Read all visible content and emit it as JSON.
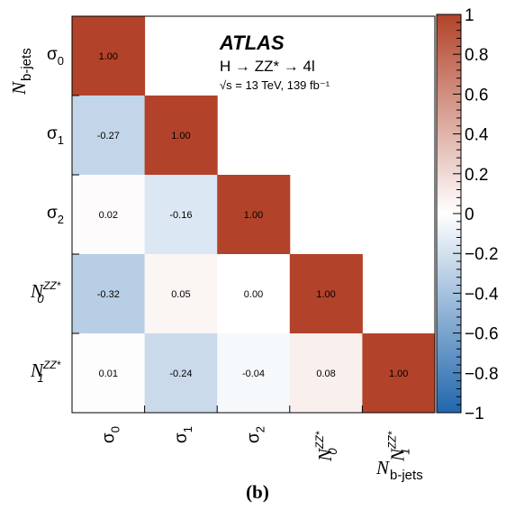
{
  "chart_data": {
    "type": "heatmap",
    "title": "ATLAS",
    "process": "H → ZZ* → 4l",
    "energy_lumi": "√s = 13 TeV, 139 fb⁻¹",
    "row_labels": [
      {
        "main": "σ",
        "sub": "0",
        "sup": ""
      },
      {
        "main": "σ",
        "sub": "1",
        "sup": ""
      },
      {
        "main": "σ",
        "sub": "2",
        "sup": ""
      },
      {
        "main": "N",
        "sub": "0",
        "sup": "ZZ*"
      },
      {
        "main": "N",
        "sub": "1",
        "sup": "ZZ*"
      }
    ],
    "col_labels": [
      {
        "main": "σ",
        "sub": "0",
        "sup": ""
      },
      {
        "main": "σ",
        "sub": "1",
        "sup": ""
      },
      {
        "main": "σ",
        "sub": "2",
        "sup": ""
      },
      {
        "main": "N",
        "sub": "0",
        "sup": "ZZ*"
      },
      {
        "main": "N",
        "sub": "1",
        "sup": "ZZ*"
      }
    ],
    "matrix": [
      [
        1.0,
        null,
        null,
        null,
        null
      ],
      [
        -0.27,
        1.0,
        null,
        null,
        null
      ],
      [
        0.02,
        -0.16,
        1.0,
        null,
        null
      ],
      [
        -0.32,
        0.05,
        0.0,
        1.0,
        null
      ],
      [
        0.01,
        -0.24,
        -0.04,
        0.08,
        1.0
      ]
    ],
    "cell_labels": [
      [
        "1.00"
      ],
      [
        "-0.27",
        "1.00"
      ],
      [
        "0.02",
        "-0.16",
        "1.00"
      ],
      [
        "-0.32",
        "0.05",
        "0.00",
        "1.00"
      ],
      [
        "0.01",
        "-0.24",
        "-0.04",
        "0.08",
        "1.00"
      ]
    ],
    "ylabel": {
      "main": "N",
      "sub": "b-jets"
    },
    "xlabel": {
      "main": "N",
      "sub": "b-jets"
    },
    "zlim": [
      -1,
      1
    ],
    "colorbar_ticks": [
      1,
      0.8,
      0.6,
      0.4,
      0.2,
      0,
      -0.2,
      -0.4,
      -0.6,
      -0.8,
      -1
    ],
    "colorbar_labels": [
      "1",
      "0.8",
      "0.6",
      "0.4",
      "0.2",
      "0",
      "−0.2",
      "−0.4",
      "−0.6",
      "−0.8",
      "−1"
    ],
    "colors": {
      "negative": "#2166ac",
      "zero": "#ffffff",
      "positive": "#b2432a"
    }
  },
  "panel_label": "(b)"
}
